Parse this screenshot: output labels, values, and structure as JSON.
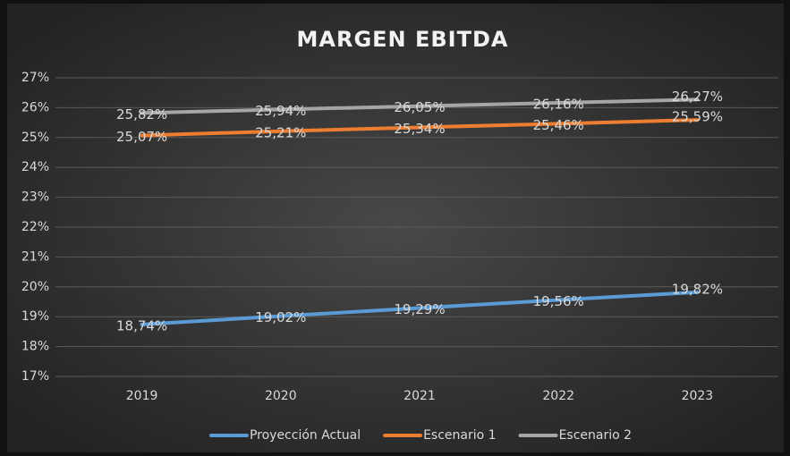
{
  "chart_data": {
    "type": "line",
    "title": "MARGEN EBITDA",
    "categories": [
      "2019",
      "2020",
      "2021",
      "2022",
      "2023"
    ],
    "series": [
      {
        "name": "Proyección Actual",
        "color": "#5b9bd5",
        "values": [
          18.74,
          19.02,
          19.29,
          19.56,
          19.82
        ],
        "value_labels": [
          "18,74%",
          "19,02%",
          "19,29%",
          "19,56%",
          "19,82%"
        ]
      },
      {
        "name": "Escenario 1",
        "color": "#ed7d31",
        "values": [
          25.07,
          25.21,
          25.34,
          25.46,
          25.59
        ],
        "value_labels": [
          "25,07%",
          "25,21%",
          "25,34%",
          "25,46%",
          "25,59%"
        ]
      },
      {
        "name": "Escenario 2",
        "color": "#a5a5a5",
        "values": [
          25.82,
          25.94,
          26.05,
          26.16,
          26.27
        ],
        "value_labels": [
          "25,82%",
          "25,94%",
          "26,05%",
          "26,16%",
          "26,27%"
        ]
      }
    ],
    "ylim": [
      17,
      27
    ],
    "yticks": [
      {
        "value": 17,
        "label": "17%"
      },
      {
        "value": 18,
        "label": "18%"
      },
      {
        "value": 19,
        "label": "19%"
      },
      {
        "value": 20,
        "label": "20%"
      },
      {
        "value": 21,
        "label": "21%"
      },
      {
        "value": 22,
        "label": "22%"
      },
      {
        "value": 23,
        "label": "23%"
      },
      {
        "value": 24,
        "label": "24%"
      },
      {
        "value": 25,
        "label": "25%"
      },
      {
        "value": 26,
        "label": "26%"
      },
      {
        "value": 27,
        "label": "27%"
      }
    ],
    "grid": true,
    "legend": "bottom"
  }
}
